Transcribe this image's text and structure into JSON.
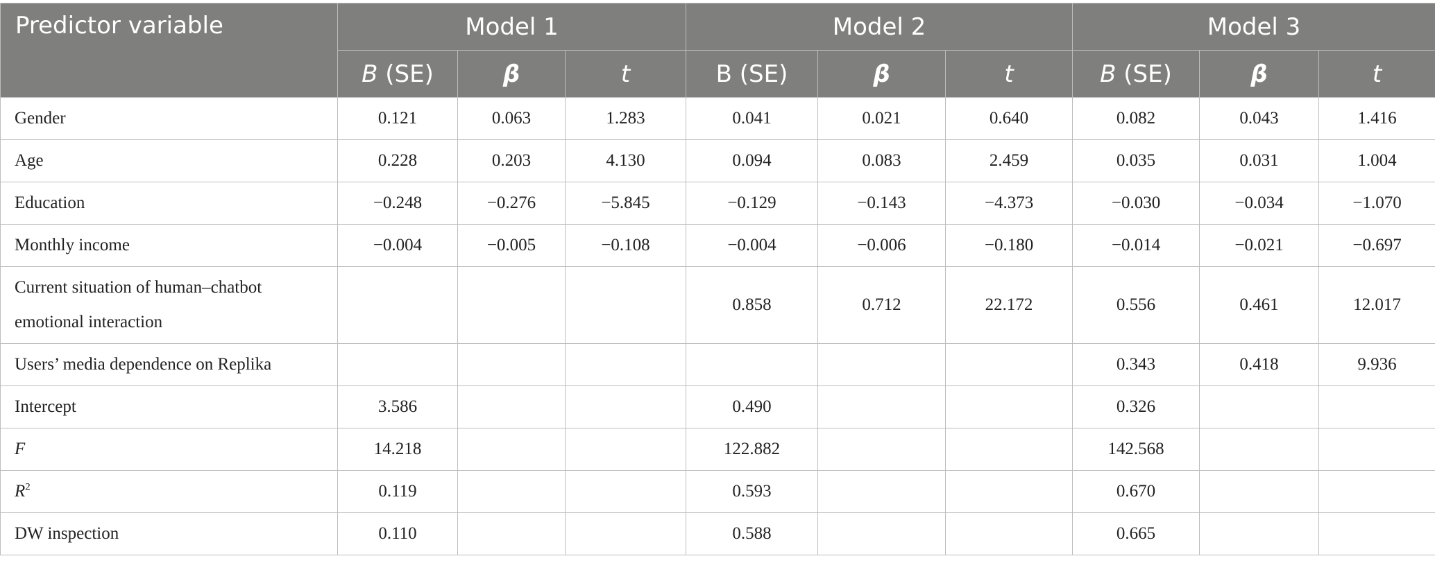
{
  "table": {
    "header": {
      "predictor_label": "Predictor variable",
      "models": [
        "Model 1",
        "Model 2",
        "Model 3"
      ],
      "m1": {
        "b": "B",
        "b_rest": " (SE)",
        "beta": "β",
        "t": "t"
      },
      "m2": {
        "b": "B (SE)",
        "beta": "β",
        "t": "t"
      },
      "m3": {
        "b": "B",
        "b_rest": " (SE)",
        "beta": "β",
        "t": "t"
      }
    },
    "rows": [
      {
        "label": "Gender",
        "cells": [
          "0.121",
          "0.063",
          "1.283",
          "0.041",
          "0.021",
          "0.640",
          "0.082",
          "0.043",
          "1.416"
        ]
      },
      {
        "label": "Age",
        "cells": [
          "0.228",
          "0.203",
          "4.130",
          "0.094",
          "0.083",
          "2.459",
          "0.035",
          "0.031",
          "1.004"
        ]
      },
      {
        "label": "Education",
        "cells": [
          "−0.248",
          "−0.276",
          "−5.845",
          "−0.129",
          "−0.143",
          "−4.373",
          "−0.030",
          "−0.034",
          "−1.070"
        ]
      },
      {
        "label": "Monthly income",
        "cells": [
          "−0.004",
          "−0.005",
          "−0.108",
          "−0.004",
          "−0.006",
          "−0.180",
          "−0.014",
          "−0.021",
          "−0.697"
        ]
      },
      {
        "label_line1": "Current situation of human–chatbot",
        "label_line2": "emotional interaction",
        "cells": [
          "",
          "",
          "",
          "0.858",
          "0.712",
          "22.172",
          "0.556",
          "0.461",
          "12.017"
        ]
      },
      {
        "label": "Users’ media dependence on Replika",
        "cells": [
          "",
          "",
          "",
          "",
          "",
          "",
          "0.343",
          "0.418",
          "9.936"
        ]
      },
      {
        "label": "Intercept",
        "cells": [
          "3.586",
          "",
          "",
          "0.490",
          "",
          "",
          "0.326",
          "",
          ""
        ]
      },
      {
        "label": "F",
        "cells": [
          "14.218",
          "",
          "",
          "122.882",
          "",
          "",
          "142.568",
          "",
          ""
        ]
      },
      {
        "label": "R",
        "label_sup": "2",
        "cells": [
          "0.119",
          "",
          "",
          "0.593",
          "",
          "",
          "0.670",
          "",
          ""
        ]
      },
      {
        "label": "DW inspection",
        "cells": [
          "0.110",
          "",
          "",
          "0.588",
          "",
          "",
          "0.665",
          "",
          ""
        ]
      }
    ]
  }
}
